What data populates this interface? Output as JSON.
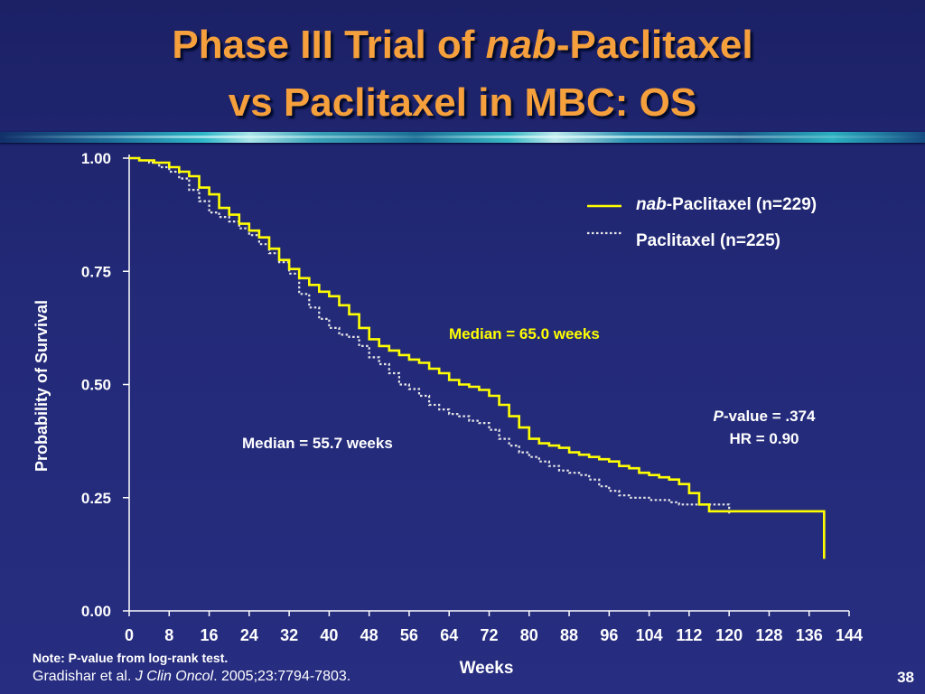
{
  "slide": {
    "title_line1_prefix": "Phase III Trial of ",
    "title_line1_italic": "nab",
    "title_line1_suffix": "-Paclitaxel",
    "title_line2": "vs Paclitaxel in MBC: OS",
    "note": "Note: P-value from log-rank test.",
    "reference_prefix": "Gradishar et al. ",
    "reference_journal": "J Clin Oncol",
    "reference_suffix": ". 2005;23:7794-7803.",
    "slide_number": "38"
  },
  "colors": {
    "title": "#f5a03c",
    "nab_series": "#ffff00",
    "paclitaxel_series": "#e6e6e6",
    "axis_text": "#ffffff",
    "median_nab_label": "#ffff00"
  },
  "chart_data": {
    "type": "line",
    "subtype": "kaplan-meier step curve",
    "xlabel": "Weeks",
    "ylabel": "Probability of Survival",
    "xlim": [
      0,
      144
    ],
    "ylim": [
      0,
      1
    ],
    "x_ticks": [
      0,
      8,
      16,
      24,
      32,
      40,
      48,
      56,
      64,
      72,
      80,
      88,
      96,
      104,
      112,
      120,
      128,
      136,
      144
    ],
    "y_ticks": [
      "0.00",
      "0.25",
      "0.50",
      "0.75",
      "1.00"
    ],
    "y_tick_values": [
      0,
      0.25,
      0.5,
      0.75,
      1.0
    ],
    "legend_position": "top-right",
    "legend": [
      {
        "italic": "nab",
        "text": "-Paclitaxel (n=229)"
      },
      {
        "italic": "",
        "text": "Paclitaxel (n=225)"
      }
    ],
    "series": [
      {
        "name": "nab-Paclitaxel (n=229)",
        "style": "solid",
        "x": [
          0,
          2,
          5,
          8,
          10,
          12,
          14,
          16,
          18,
          20,
          22,
          24,
          26,
          28,
          30,
          32,
          34,
          36,
          38,
          40,
          42,
          44,
          46,
          48,
          50,
          52,
          54,
          56,
          58,
          60,
          62,
          64,
          66,
          68,
          70,
          72,
          74,
          76,
          78,
          80,
          82,
          84,
          86,
          88,
          90,
          92,
          94,
          96,
          98,
          100,
          102,
          104,
          106,
          108,
          110,
          112,
          114,
          116,
          118,
          120,
          124,
          128,
          132,
          136,
          138,
          139,
          139
        ],
        "y": [
          1.0,
          0.995,
          0.99,
          0.98,
          0.97,
          0.96,
          0.935,
          0.92,
          0.89,
          0.875,
          0.855,
          0.84,
          0.825,
          0.8,
          0.775,
          0.755,
          0.735,
          0.72,
          0.705,
          0.695,
          0.675,
          0.655,
          0.625,
          0.6,
          0.585,
          0.575,
          0.565,
          0.555,
          0.548,
          0.535,
          0.525,
          0.51,
          0.5,
          0.495,
          0.488,
          0.475,
          0.455,
          0.43,
          0.405,
          0.38,
          0.37,
          0.365,
          0.36,
          0.35,
          0.345,
          0.34,
          0.335,
          0.33,
          0.32,
          0.315,
          0.305,
          0.3,
          0.295,
          0.29,
          0.28,
          0.26,
          0.235,
          0.22,
          0.22,
          0.22,
          0.22,
          0.22,
          0.22,
          0.22,
          0.22,
          0.22,
          0.115
        ]
      },
      {
        "name": "Paclitaxel (n=225)",
        "style": "dotted",
        "x": [
          0,
          2,
          4,
          6,
          8,
          10,
          12,
          14,
          16,
          18,
          20,
          22,
          24,
          26,
          28,
          30,
          32,
          34,
          36,
          38,
          40,
          42,
          44,
          46,
          48,
          50,
          52,
          54,
          56,
          58,
          60,
          62,
          64,
          66,
          68,
          70,
          72,
          74,
          76,
          78,
          80,
          82,
          84,
          86,
          88,
          90,
          92,
          94,
          96,
          98,
          100,
          102,
          104,
          106,
          108,
          110,
          112,
          114,
          116,
          118,
          120,
          120
        ],
        "y": [
          1.0,
          0.995,
          0.99,
          0.98,
          0.97,
          0.955,
          0.93,
          0.905,
          0.88,
          0.87,
          0.86,
          0.845,
          0.83,
          0.81,
          0.79,
          0.77,
          0.745,
          0.7,
          0.67,
          0.645,
          0.625,
          0.61,
          0.605,
          0.585,
          0.56,
          0.545,
          0.525,
          0.5,
          0.49,
          0.475,
          0.455,
          0.445,
          0.435,
          0.43,
          0.42,
          0.415,
          0.4,
          0.38,
          0.365,
          0.35,
          0.34,
          0.33,
          0.32,
          0.31,
          0.305,
          0.3,
          0.29,
          0.275,
          0.265,
          0.255,
          0.25,
          0.25,
          0.245,
          0.245,
          0.24,
          0.235,
          0.235,
          0.235,
          0.235,
          0.235,
          0.235,
          0.215
        ]
      }
    ],
    "annotations": [
      {
        "id": "median-nab",
        "text": "Median = 65.0 weeks"
      },
      {
        "id": "median-paclitaxel",
        "text": "Median = 55.7 weeks"
      },
      {
        "id": "pvalue",
        "italic": "P",
        "text": "-value = .374"
      },
      {
        "id": "hr",
        "text": "HR = 0.90"
      }
    ]
  }
}
